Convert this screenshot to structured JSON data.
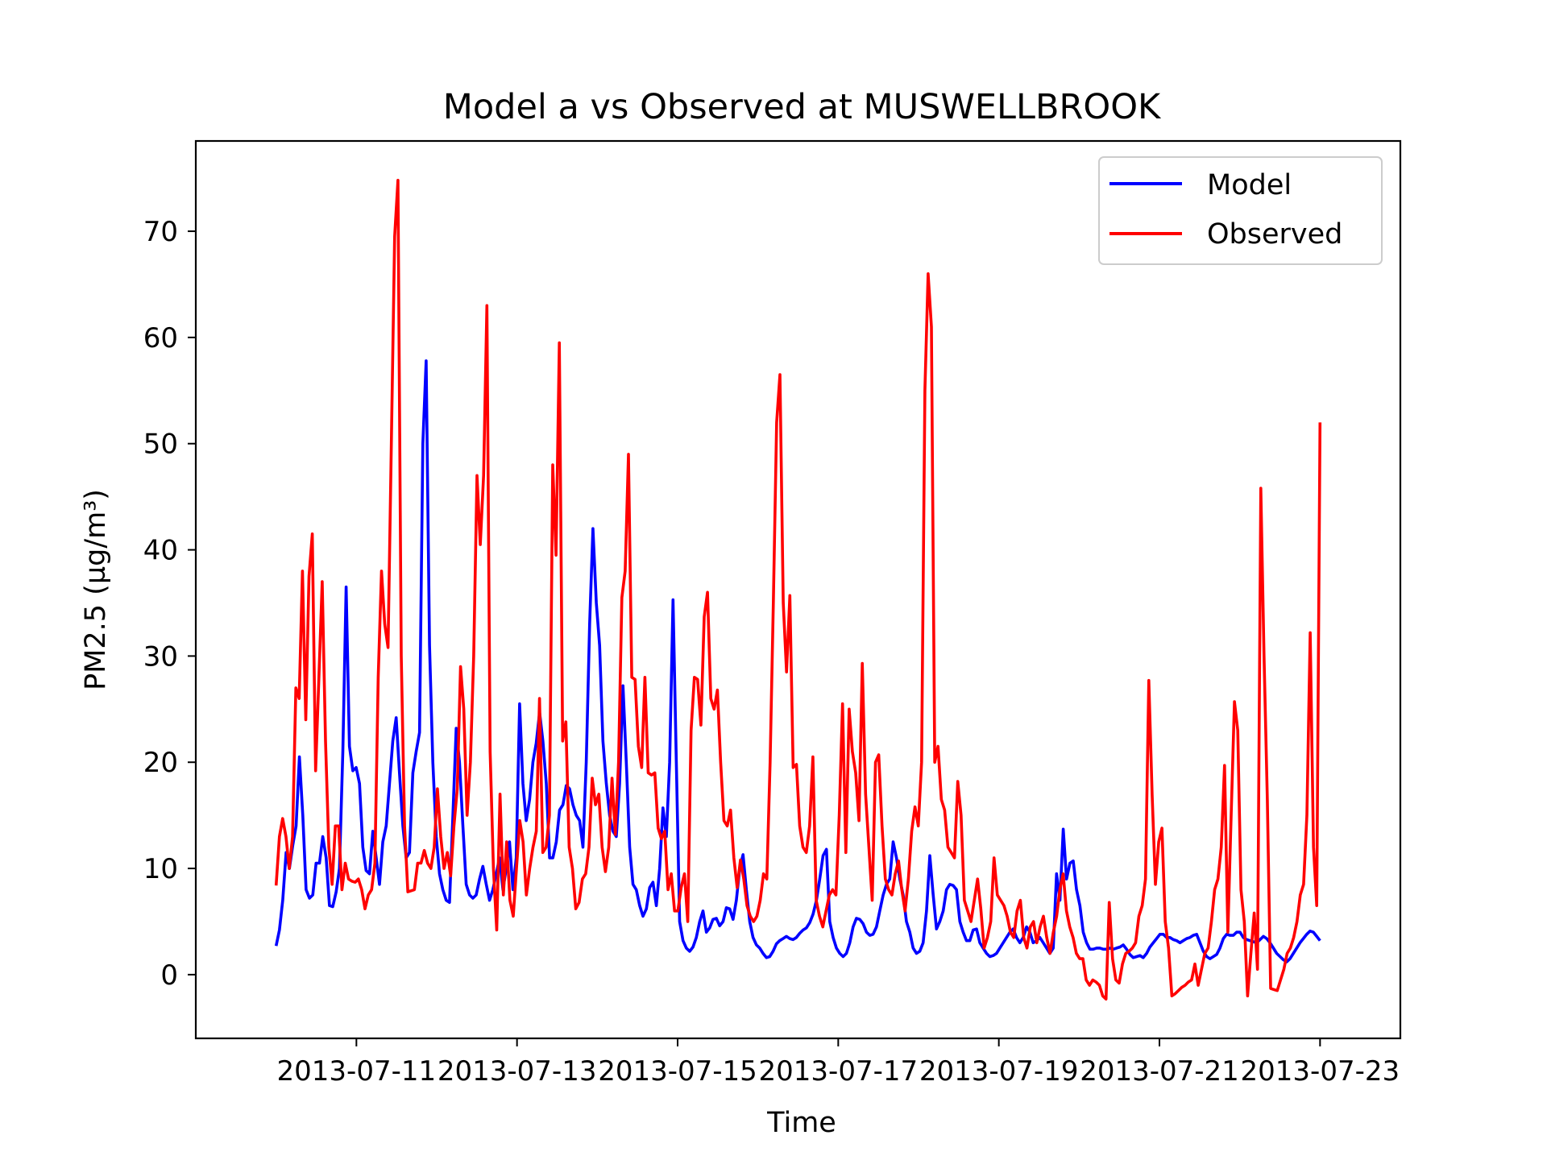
{
  "chart_data": {
    "type": "line",
    "title": "Model a vs Observed at MUSWELLBROOK",
    "xlabel": "Time",
    "ylabel": "PM2.5 (µg/m³)",
    "x_start": "2013-07-10",
    "x_end": "2013-07-23",
    "xlim": [
      "2013-07-09",
      "2013-07-24"
    ],
    "ylim": [
      -6,
      78.5
    ],
    "x_ticks": [
      "2013-07-11",
      "2013-07-13",
      "2013-07-15",
      "2013-07-17",
      "2013-07-19",
      "2013-07-21",
      "2013-07-23"
    ],
    "y_ticks": [
      0,
      10,
      20,
      30,
      40,
      50,
      60,
      70
    ],
    "grid": false,
    "legend_position": "top-right",
    "series": [
      {
        "name": "Model",
        "color": "#0000ff",
        "values": [
          2.7,
          4.2,
          7.0,
          11.5,
          10.0,
          12.2,
          14.0,
          20.5,
          15.0,
          8.0,
          7.2,
          7.5,
          10.5,
          10.5,
          13.0,
          11.0,
          6.5,
          6.4,
          7.8,
          10.0,
          21.0,
          36.5,
          21.5,
          19.2,
          19.5,
          18.0,
          12.0,
          9.8,
          9.5,
          13.5,
          11.0,
          8.5,
          12.5,
          14.0,
          18.0,
          22.0,
          24.2,
          19.0,
          14.0,
          11.0,
          11.5,
          19.0,
          21.0,
          22.8,
          50.0,
          57.8,
          31.0,
          20.0,
          13.0,
          9.5,
          8.0,
          7.0,
          6.8,
          15.0,
          23.2,
          20.0,
          14.0,
          8.5,
          7.5,
          7.2,
          7.5,
          9.0,
          10.2,
          8.5,
          7.0,
          8.0,
          9.5,
          11.0,
          8.0,
          10.0,
          12.5,
          8.0,
          11.0,
          25.5,
          18.0,
          14.5,
          16.5,
          20.0,
          21.8,
          24.7,
          22.0,
          18.0,
          11.0,
          11.0,
          12.5,
          15.5,
          16.0,
          17.8,
          17.5,
          16.0,
          15.0,
          14.5,
          12.0,
          20.0,
          33.0,
          42.0,
          35.0,
          31.0,
          22.0,
          18.0,
          15.0,
          13.5,
          13.0,
          18.0,
          27.2,
          20.0,
          12.0,
          8.5,
          8.0,
          6.5,
          5.5,
          6.2,
          8.2,
          8.7,
          6.5,
          10.0,
          15.7,
          13.0,
          20.0,
          35.3,
          20.0,
          5.0,
          3.2,
          2.5,
          2.2,
          2.6,
          3.5,
          5.0,
          6.0,
          4.0,
          4.4,
          5.2,
          5.3,
          4.6,
          5.0,
          6.3,
          6.2,
          5.2,
          7.0,
          10.0,
          11.3,
          8.0,
          5.0,
          3.5,
          2.8,
          2.5,
          2.0,
          1.6,
          1.7,
          2.2,
          2.9,
          3.2,
          3.4,
          3.6,
          3.4,
          3.3,
          3.5,
          3.9,
          4.2,
          4.4,
          4.9,
          5.7,
          7.0,
          9.0,
          11.2,
          11.8,
          5.0,
          3.5,
          2.5,
          2.0,
          1.7,
          2.0,
          3.0,
          4.5,
          5.3,
          5.2,
          4.8,
          4.0,
          3.7,
          3.8,
          4.5,
          6.0,
          7.5,
          8.5,
          9.0,
          12.5,
          11.0,
          9.0,
          7.5,
          5.0,
          4.0,
          2.5,
          2.0,
          2.2,
          3.0,
          6.0,
          11.2,
          7.5,
          4.3,
          5.0,
          6.0,
          8.0,
          8.5,
          8.4,
          8.0,
          5.0,
          4.0,
          3.2,
          3.2,
          4.2,
          4.3,
          3.0,
          2.5,
          2.0,
          1.7,
          1.8,
          2.0,
          2.5,
          3.0,
          3.5,
          4.0,
          4.3,
          3.5,
          3.0,
          3.5,
          4.5,
          4.0,
          3.0,
          3.2,
          3.5,
          3.0,
          2.5,
          2.0,
          2.5,
          9.5,
          7.0,
          13.7,
          9.0,
          10.5,
          10.7,
          8.0,
          6.5,
          4.0,
          3.0,
          2.4,
          2.4,
          2.5,
          2.5,
          2.4,
          2.4,
          2.5,
          2.4,
          2.5,
          2.6,
          2.8,
          2.4,
          1.9,
          1.6,
          1.7,
          1.8,
          1.6,
          2.0,
          2.6,
          3.0,
          3.4,
          3.8,
          3.8,
          3.5,
          3.5,
          3.3,
          3.2,
          3.0,
          3.2,
          3.4,
          3.5,
          3.7,
          3.8,
          3.0,
          2.2,
          1.7,
          1.5,
          1.7,
          1.9,
          2.5,
          3.4,
          3.8,
          3.7,
          3.7,
          4.0,
          4.0,
          3.5,
          3.3,
          3.2,
          3.1,
          3.0,
          3.3,
          3.6,
          3.4,
          3.0,
          2.5,
          2.0,
          1.7,
          1.4,
          1.2,
          1.5,
          2.0,
          2.5,
          3.0,
          3.4,
          3.8,
          4.1,
          4.0,
          3.6,
          3.2
        ]
      },
      {
        "name": "Observed",
        "color": "#ff0000",
        "values": [
          8.4,
          13.0,
          14.7,
          13.0,
          10.0,
          13.0,
          27.0,
          26.0,
          38.0,
          24.0,
          37.5,
          41.5,
          19.2,
          28.0,
          37.0,
          22.0,
          12.0,
          8.5,
          14.0,
          14.0,
          8.0,
          10.5,
          9.0,
          8.8,
          8.7,
          9.0,
          8.0,
          6.2,
          7.5,
          8.0,
          10.5,
          28.0,
          38.0,
          33.0,
          30.8,
          50.0,
          69.5,
          74.8,
          30.0,
          14.0,
          7.8,
          7.9,
          8.0,
          10.5,
          10.5,
          11.7,
          10.5,
          10.0,
          12.0,
          17.5,
          13.0,
          10.0,
          11.5,
          9.3,
          14.0,
          17.5,
          29.0,
          25.0,
          15.0,
          20.0,
          30.0,
          47.0,
          40.5,
          47.0,
          63.0,
          21.0,
          10.0,
          4.2,
          17.0,
          7.5,
          12.5,
          7.0,
          5.5,
          10.0,
          14.5,
          12.5,
          7.5,
          10.0,
          12.0,
          13.5,
          26.0,
          11.5,
          12.0,
          15.0,
          48.0,
          39.5,
          59.5,
          22.0,
          23.8,
          12.0,
          10.0,
          6.2,
          6.8,
          9.0,
          9.5,
          12.0,
          18.5,
          16.0,
          17.0,
          12.0,
          9.7,
          12.0,
          18.5,
          13.2,
          20.0,
          35.5,
          38.0,
          49.0,
          28.0,
          27.8,
          21.5,
          19.5,
          28.0,
          19.0,
          18.8,
          19.0,
          13.8,
          12.8,
          13.5,
          8.0,
          9.5,
          6.0,
          6.0,
          8.2,
          9.5,
          5.0,
          23.0,
          28.0,
          27.8,
          23.5,
          33.7,
          36.0,
          26.0,
          25.0,
          26.8,
          20.0,
          14.5,
          14.0,
          15.5,
          11.0,
          8.2,
          10.8,
          9.0,
          6.5,
          5.5,
          5.0,
          5.5,
          7.0,
          9.5,
          9.0,
          20.0,
          35.0,
          52.0,
          56.5,
          35.0,
          28.5,
          35.7,
          19.5,
          19.8,
          14.0,
          12.0,
          11.5,
          14.0,
          20.5,
          7.0,
          5.5,
          4.5,
          6.0,
          7.5,
          8.0,
          7.5,
          15.0,
          25.5,
          11.5,
          25.0,
          21.0,
          19.0,
          14.5,
          29.3,
          17.0,
          12.0,
          7.0,
          20.0,
          20.7,
          14.0,
          9.0,
          8.0,
          7.5,
          9.5,
          10.7,
          8.0,
          6.0,
          9.0,
          13.5,
          15.8,
          14.0,
          20.0,
          55.0,
          66.0,
          61.0,
          20.0,
          21.5,
          16.5,
          15.5,
          12.0,
          11.5,
          11.0,
          18.2,
          15.0,
          7.0,
          6.0,
          5.0,
          7.0,
          9.0,
          6.2,
          2.5,
          3.5,
          5.0,
          11.0,
          7.5,
          7.0,
          6.5,
          5.5,
          4.0,
          3.5,
          6.0,
          7.0,
          3.5,
          2.5,
          4.5,
          5.0,
          3.0,
          4.5,
          5.5,
          3.5,
          2.0,
          4.0,
          5.5,
          8.0,
          9.5,
          6.0,
          4.5,
          3.5,
          2.0,
          1.5,
          1.5,
          -0.5,
          -1.0,
          -0.5,
          -0.7,
          -1.0,
          -2.0,
          -2.3,
          6.8,
          1.5,
          -0.5,
          -0.8,
          1.0,
          2.0,
          2.2,
          2.5,
          3.0,
          5.5,
          6.5,
          9.0,
          27.7,
          17.0,
          8.5,
          12.5,
          13.8,
          5.0,
          2.5,
          -2.0,
          -1.8,
          -1.5,
          -1.2,
          -1.0,
          -0.7,
          -0.5,
          1.0,
          -1.0,
          0.5,
          2.0,
          2.5,
          5.0,
          8.0,
          9.0,
          12.0,
          19.7,
          4.0,
          15.0,
          25.7,
          23.0,
          8.0,
          5.0,
          -2.0,
          2.0,
          5.8,
          0.5,
          45.8,
          30.0,
          16.5,
          -1.3,
          -1.4,
          -1.5,
          -0.5,
          0.5,
          2.0,
          2.5,
          3.5,
          5.0,
          7.5,
          8.5,
          15.0,
          32.2,
          12.0,
          6.5,
          52.0
        ]
      }
    ]
  }
}
